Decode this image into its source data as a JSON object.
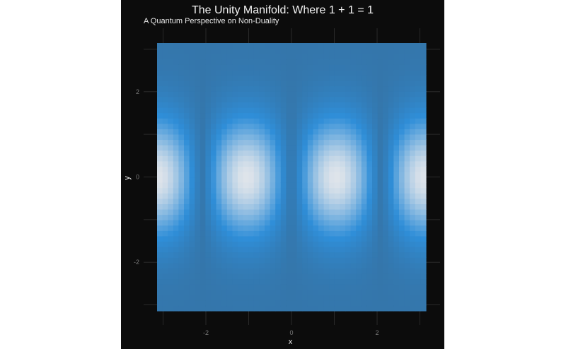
{
  "chart_data": {
    "type": "heatmap",
    "title": "The Unity Manifold: Where 1 + 1 = 1",
    "subtitle": "A Quantum Perspective on Non-Duality",
    "xlabel": "x",
    "ylabel": "y",
    "xlim": [
      -3.14,
      3.14
    ],
    "ylim": [
      -3.14,
      3.14
    ],
    "x_ticks": [
      -2,
      0,
      2
    ],
    "y_ticks": [
      -2,
      0,
      2
    ],
    "x_tick_labels": [
      "-2",
      "0",
      "2"
    ],
    "y_tick_labels": [
      "-2",
      "0",
      "2"
    ],
    "grid": true,
    "grid_step": 1,
    "resolution": 50,
    "function": "z = |sin(1.5 x)| * exp(-y^2 / 2)  (approximate)",
    "color_scale": {
      "low": "#3476ab",
      "mid": "#2f8ed8",
      "high": "#dfe4ea"
    },
    "colors": {
      "background": "#0c0c0c",
      "grid": "#2a2a2a",
      "text": "#f2f2f2",
      "tick": "#7a7a7a"
    }
  }
}
